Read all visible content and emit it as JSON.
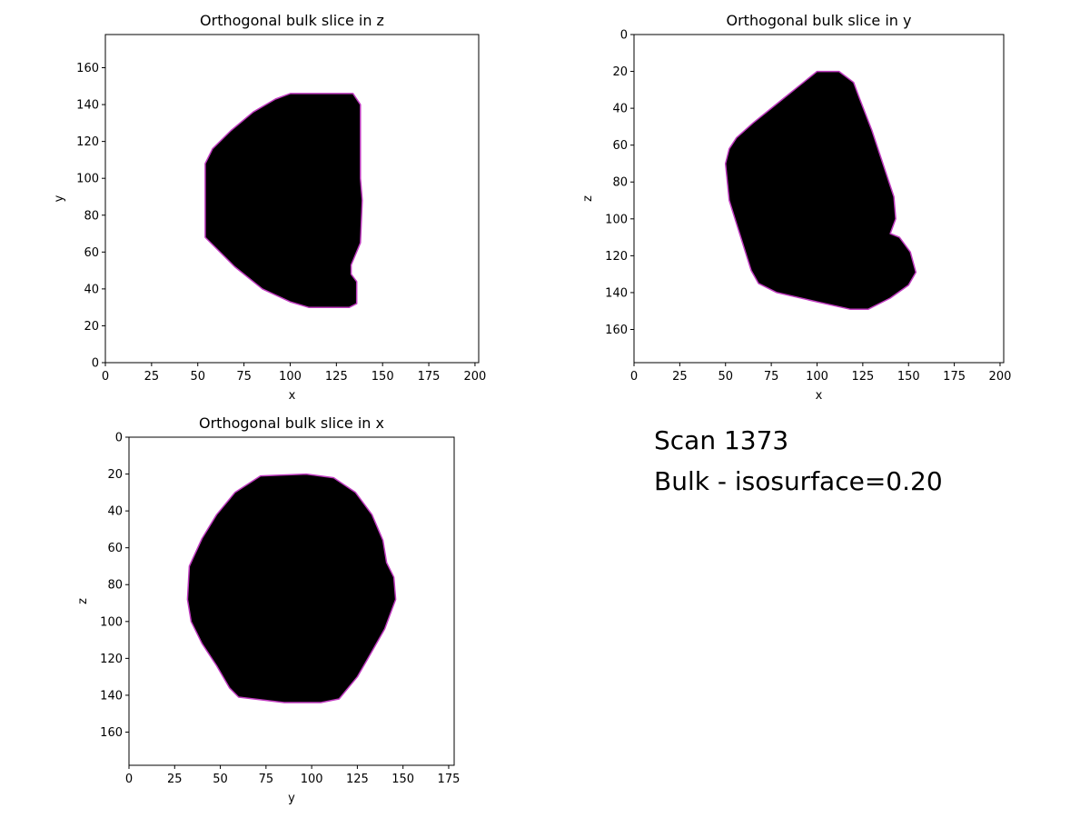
{
  "scan_label": "Scan 1373",
  "bulk_label": "Bulk - isosurface=0.20",
  "chart_data": [
    {
      "type": "heatmap",
      "title": "Orthogonal bulk slice in z",
      "xlabel": "x",
      "ylabel": "y",
      "xlim": [
        0,
        202
      ],
      "ylim": [
        0,
        178
      ],
      "y_inverted": false,
      "xticks": [
        0,
        25,
        50,
        75,
        100,
        125,
        150,
        175,
        200
      ],
      "yticks": [
        0,
        20,
        40,
        60,
        80,
        100,
        120,
        140,
        160
      ],
      "fill_color": "#000000",
      "edge_color": "#c03cc0",
      "polygon": [
        [
          54,
          68
        ],
        [
          54,
          108
        ],
        [
          58,
          116
        ],
        [
          68,
          126
        ],
        [
          80,
          136
        ],
        [
          92,
          143
        ],
        [
          100,
          146
        ],
        [
          134,
          146
        ],
        [
          138,
          140
        ],
        [
          138,
          100
        ],
        [
          139,
          88
        ],
        [
          138,
          65
        ],
        [
          133,
          53
        ],
        [
          133,
          48
        ],
        [
          136,
          44
        ],
        [
          136,
          32
        ],
        [
          132,
          30
        ],
        [
          110,
          30
        ],
        [
          100,
          33
        ],
        [
          85,
          40
        ],
        [
          70,
          52
        ]
      ]
    },
    {
      "type": "heatmap",
      "title": "Orthogonal bulk slice in y",
      "xlabel": "x",
      "ylabel": "z",
      "xlim": [
        0,
        202
      ],
      "ylim": [
        0,
        178
      ],
      "y_inverted": true,
      "xticks": [
        0,
        25,
        50,
        75,
        100,
        125,
        150,
        175,
        200
      ],
      "yticks": [
        0,
        20,
        40,
        60,
        80,
        100,
        120,
        140,
        160
      ],
      "fill_color": "#000000",
      "edge_color": "#c03cc0",
      "polygon": [
        [
          100,
          20
        ],
        [
          112,
          20
        ],
        [
          120,
          26
        ],
        [
          123,
          34
        ],
        [
          130,
          52
        ],
        [
          142,
          88
        ],
        [
          143,
          100
        ],
        [
          140,
          108
        ],
        [
          145,
          110
        ],
        [
          151,
          118
        ],
        [
          154,
          129
        ],
        [
          150,
          136
        ],
        [
          140,
          143
        ],
        [
          128,
          149
        ],
        [
          118,
          149
        ],
        [
          100,
          145
        ],
        [
          78,
          140
        ],
        [
          68,
          135
        ],
        [
          64,
          128
        ],
        [
          52,
          90
        ],
        [
          50,
          70
        ],
        [
          52,
          62
        ],
        [
          56,
          56
        ],
        [
          65,
          48
        ],
        [
          80,
          36
        ],
        [
          90,
          28
        ]
      ]
    },
    {
      "type": "heatmap",
      "title": "Orthogonal bulk slice in x",
      "xlabel": "y",
      "ylabel": "z",
      "xlim": [
        0,
        178
      ],
      "ylim": [
        0,
        178
      ],
      "y_inverted": true,
      "xticks": [
        0,
        25,
        50,
        75,
        100,
        125,
        150,
        175
      ],
      "yticks": [
        0,
        20,
        40,
        60,
        80,
        100,
        120,
        140,
        160
      ],
      "fill_color": "#000000",
      "edge_color": "#c03cc0",
      "polygon": [
        [
          72,
          21
        ],
        [
          97,
          20
        ],
        [
          112,
          22
        ],
        [
          124,
          30
        ],
        [
          133,
          42
        ],
        [
          139,
          56
        ],
        [
          141,
          68
        ],
        [
          145,
          76
        ],
        [
          146,
          88
        ],
        [
          140,
          104
        ],
        [
          132,
          118
        ],
        [
          125,
          130
        ],
        [
          115,
          142
        ],
        [
          105,
          144
        ],
        [
          85,
          144
        ],
        [
          60,
          141
        ],
        [
          55,
          136
        ],
        [
          48,
          124
        ],
        [
          40,
          112
        ],
        [
          34,
          100
        ],
        [
          32,
          88
        ],
        [
          33,
          70
        ],
        [
          40,
          55
        ],
        [
          48,
          42
        ],
        [
          58,
          30
        ]
      ]
    }
  ]
}
